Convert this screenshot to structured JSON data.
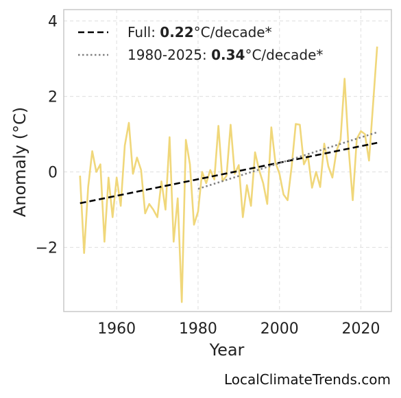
{
  "chart_data": {
    "type": "line",
    "xlabel": "Year",
    "ylabel": "Anomaly (°C)",
    "xlim": [
      1947,
      2027.5
    ],
    "ylim": [
      -3.7,
      4.3
    ],
    "xticks": [
      1960,
      1980,
      2000,
      2020
    ],
    "yticks": [
      -2,
      0,
      2,
      4
    ],
    "ytick_labels": [
      "−2",
      "0",
      "2",
      "4"
    ],
    "grid": true,
    "legend_placement": "top-left",
    "series": [
      {
        "kind": "anomaly",
        "color": "#f0d77a",
        "x": [
          1951,
          1952,
          1953,
          1954,
          1955,
          1956,
          1957,
          1958,
          1959,
          1960,
          1961,
          1962,
          1963,
          1964,
          1965,
          1966,
          1967,
          1968,
          1969,
          1970,
          1971,
          1972,
          1973,
          1974,
          1975,
          1976,
          1977,
          1978,
          1979,
          1980,
          1981,
          1982,
          1983,
          1984,
          1985,
          1986,
          1987,
          1988,
          1989,
          1990,
          1991,
          1992,
          1993,
          1994,
          1995,
          1996,
          1997,
          1998,
          1999,
          2000,
          2001,
          2002,
          2003,
          2004,
          2005,
          2006,
          2007,
          2008,
          2009,
          2010,
          2011,
          2012,
          2013,
          2014,
          2015,
          2016,
          2017,
          2018,
          2019,
          2020,
          2021,
          2022,
          2023,
          2024
        ],
        "y": [
          -0.1,
          -2.15,
          -0.4,
          0.55,
          0.0,
          0.2,
          -1.85,
          -0.15,
          -1.2,
          -0.15,
          -0.9,
          0.7,
          1.3,
          -0.05,
          0.38,
          0.05,
          -1.1,
          -0.85,
          -1.0,
          -1.2,
          -0.25,
          -1.0,
          0.92,
          -1.85,
          -0.7,
          -3.45,
          0.85,
          0.2,
          -1.4,
          -1.05,
          0.0,
          -0.3,
          0.05,
          -0.2,
          1.22,
          -0.25,
          -0.1,
          1.25,
          -0.05,
          0.18,
          -1.2,
          -0.35,
          -0.9,
          0.52,
          0.05,
          -0.3,
          -0.85,
          1.18,
          0.25,
          -0.05,
          -0.6,
          -0.75,
          0.15,
          1.27,
          1.25,
          0.2,
          0.42,
          -0.42,
          0.0,
          -0.4,
          0.75,
          0.15,
          -0.15,
          0.55,
          0.85,
          2.47,
          0.6,
          -0.75,
          0.88,
          1.08,
          1.0,
          0.3,
          1.8,
          3.32
        ]
      },
      {
        "kind": "trend-full",
        "color": "#000000",
        "x": [
          1951,
          2024
        ],
        "y": [
          -0.83,
          0.77
        ]
      },
      {
        "kind": "trend-1980",
        "color": "#808080",
        "x": [
          1980,
          2024
        ],
        "y": [
          -0.45,
          1.05
        ]
      }
    ],
    "legend": [
      {
        "prefix": "Full: ",
        "value": "0.22",
        "suffix": "°C/decade*"
      },
      {
        "prefix": "1980-2025: ",
        "value": "0.34",
        "suffix": "°C/decade*"
      }
    ]
  },
  "credit": "LocalClimateTrends.com"
}
